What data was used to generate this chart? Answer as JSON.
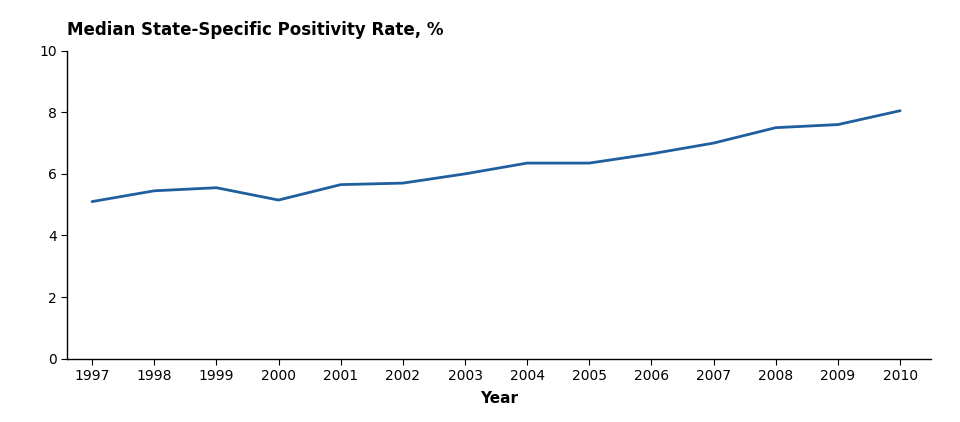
{
  "years": [
    1997,
    1998,
    1999,
    2000,
    2001,
    2002,
    2003,
    2004,
    2005,
    2006,
    2007,
    2008,
    2009,
    2010
  ],
  "values": [
    5.1,
    5.45,
    5.55,
    5.15,
    5.65,
    5.7,
    6.0,
    6.35,
    6.35,
    6.65,
    7.0,
    7.5,
    7.6,
    8.05
  ],
  "line_color": "#1F5F9E",
  "line_width": 2.0,
  "title": "Median State-Specific Positivity Rate, %",
  "xlabel": "Year",
  "ylim": [
    0,
    10
  ],
  "yticks": [
    0,
    2,
    4,
    6,
    8,
    10
  ],
  "xlim": [
    1996.6,
    2010.5
  ],
  "background_color": "#ffffff",
  "title_fontsize": 12,
  "xlabel_fontsize": 11,
  "tick_fontsize": 10
}
